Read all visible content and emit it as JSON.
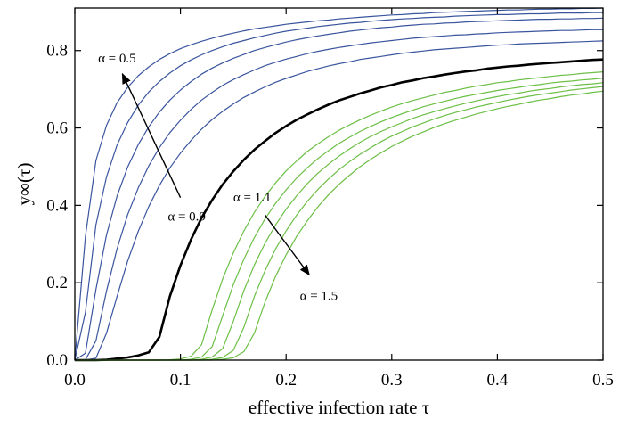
{
  "chart_data": {
    "type": "line",
    "xlabel": "effective infection rate τ",
    "ylabel": "y∞(τ)",
    "xlim": [
      0,
      0.5
    ],
    "ylim": [
      0,
      0.91
    ],
    "x_ticks": [
      "0.0",
      "0.1",
      "0.2",
      "0.3",
      "0.4",
      "0.5"
    ],
    "x_tick_values": [
      0,
      0.1,
      0.2,
      0.3,
      0.4,
      0.5
    ],
    "y_ticks": [
      "0.0",
      "0.2",
      "0.4",
      "0.6",
      "0.8"
    ],
    "y_tick_values": [
      0,
      0.2,
      0.4,
      0.6,
      0.8
    ],
    "grid": false,
    "colors": {
      "low_alpha": "#3a559e",
      "critical": "#000000",
      "high_alpha": "#6cbf45"
    },
    "x": [
      0,
      0.01,
      0.02,
      0.03,
      0.04,
      0.05,
      0.06,
      0.07,
      0.08,
      0.09,
      0.1,
      0.11,
      0.12,
      0.13,
      0.14,
      0.15,
      0.16,
      0.17,
      0.18,
      0.19,
      0.2,
      0.21,
      0.22,
      0.23,
      0.24,
      0.25,
      0.26,
      0.27,
      0.28,
      0.29,
      0.3,
      0.31,
      0.32,
      0.33,
      0.34,
      0.35,
      0.36,
      0.37,
      0.38,
      0.39,
      0.4,
      0.41,
      0.42,
      0.43,
      0.44,
      0.45,
      0.46,
      0.47,
      0.48,
      0.49,
      0.5
    ],
    "series": [
      {
        "group": "low_alpha",
        "values": [
          0,
          0.32,
          0.516,
          0.607,
          0.665,
          0.705,
          0.735,
          0.758,
          0.777,
          0.792,
          0.805,
          0.815,
          0.824,
          0.832,
          0.839,
          0.845,
          0.851,
          0.856,
          0.86,
          0.864,
          0.868,
          0.871,
          0.874,
          0.877,
          0.879,
          0.882,
          0.884,
          0.886,
          0.888,
          0.89,
          0.892,
          0.893,
          0.895,
          0.896,
          0.898,
          0.899,
          0.9,
          0.901,
          0.902,
          0.903,
          0.904,
          0.905,
          0.905,
          0.906,
          0.907,
          0.907,
          0.908,
          0.908,
          0.909,
          0.909,
          0.91
        ]
      },
      {
        "group": "low_alpha",
        "values": [
          0,
          0.124,
          0.35,
          0.474,
          0.556,
          0.614,
          0.659,
          0.693,
          0.72,
          0.742,
          0.761,
          0.776,
          0.789,
          0.8,
          0.81,
          0.819,
          0.826,
          0.833,
          0.839,
          0.845,
          0.85,
          0.854,
          0.858,
          0.862,
          0.865,
          0.868,
          0.871,
          0.873,
          0.876,
          0.878,
          0.88,
          0.882,
          0.883,
          0.885,
          0.886,
          0.887,
          0.889,
          0.89,
          0.891,
          0.892,
          0.893,
          0.893,
          0.894,
          0.895,
          0.895,
          0.896,
          0.897,
          0.897,
          0.897,
          0.898,
          0.898
        ]
      },
      {
        "group": "low_alpha",
        "values": [
          0,
          0.018,
          0.183,
          0.324,
          0.424,
          0.499,
          0.557,
          0.603,
          0.641,
          0.672,
          0.698,
          0.72,
          0.739,
          0.755,
          0.768,
          0.78,
          0.79,
          0.8,
          0.808,
          0.815,
          0.822,
          0.828,
          0.833,
          0.838,
          0.842,
          0.846,
          0.85,
          0.853,
          0.856,
          0.859,
          0.861,
          0.864,
          0.866,
          0.868,
          0.869,
          0.871,
          0.872,
          0.874,
          0.875,
          0.876,
          0.877,
          0.878,
          0.879,
          0.88,
          0.881,
          0.881,
          0.882,
          0.882,
          0.883,
          0.883,
          0.884
        ]
      },
      {
        "group": "low_alpha",
        "values": [
          0,
          0.001,
          0.05,
          0.179,
          0.288,
          0.376,
          0.445,
          0.502,
          0.549,
          0.588,
          0.62,
          0.648,
          0.672,
          0.692,
          0.71,
          0.725,
          0.738,
          0.75,
          0.761,
          0.77,
          0.778,
          0.785,
          0.792,
          0.798,
          0.803,
          0.808,
          0.812,
          0.816,
          0.82,
          0.823,
          0.826,
          0.829,
          0.832,
          0.834,
          0.836,
          0.838,
          0.84,
          0.841,
          0.843,
          0.844,
          0.846,
          0.847,
          0.848,
          0.849,
          0.85,
          0.851,
          0.852,
          0.852,
          0.853,
          0.854,
          0.854
        ]
      },
      {
        "group": "low_alpha",
        "values": [
          0,
          0,
          0.005,
          0.07,
          0.165,
          0.256,
          0.333,
          0.397,
          0.451,
          0.497,
          0.535,
          0.568,
          0.597,
          0.622,
          0.643,
          0.662,
          0.679,
          0.693,
          0.706,
          0.718,
          0.728,
          0.737,
          0.746,
          0.753,
          0.76,
          0.766,
          0.771,
          0.777,
          0.781,
          0.785,
          0.789,
          0.793,
          0.796,
          0.799,
          0.802,
          0.804,
          0.806,
          0.808,
          0.81,
          0.812,
          0.814,
          0.815,
          0.817,
          0.818,
          0.819,
          0.82,
          0.821,
          0.822,
          0.823,
          0.824,
          0.825
        ]
      },
      {
        "group": "critical",
        "values": [
          0,
          0,
          0,
          0.001,
          0.004,
          0.007,
          0.012,
          0.02,
          0.06,
          0.165,
          0.245,
          0.312,
          0.368,
          0.414,
          0.454,
          0.488,
          0.518,
          0.544,
          0.566,
          0.587,
          0.605,
          0.621,
          0.635,
          0.648,
          0.66,
          0.671,
          0.68,
          0.689,
          0.697,
          0.705,
          0.711,
          0.718,
          0.723,
          0.729,
          0.733,
          0.738,
          0.742,
          0.746,
          0.749,
          0.753,
          0.756,
          0.759,
          0.761,
          0.764,
          0.766,
          0.768,
          0.77,
          0.772,
          0.774,
          0.776,
          0.777
        ]
      },
      {
        "group": "high_alpha",
        "values": [
          0,
          0,
          0,
          0,
          0,
          0,
          0,
          0,
          0,
          0.001,
          0.003,
          0.01,
          0.04,
          0.13,
          0.21,
          0.277,
          0.334,
          0.382,
          0.423,
          0.458,
          0.489,
          0.515,
          0.539,
          0.559,
          0.577,
          0.594,
          0.608,
          0.621,
          0.633,
          0.644,
          0.654,
          0.663,
          0.671,
          0.678,
          0.685,
          0.692,
          0.697,
          0.703,
          0.708,
          0.712,
          0.717,
          0.72,
          0.724,
          0.727,
          0.73,
          0.733,
          0.736,
          0.738,
          0.741,
          0.743,
          0.745
        ]
      },
      {
        "group": "high_alpha",
        "values": [
          0,
          0,
          0,
          0,
          0,
          0,
          0,
          0,
          0,
          0,
          0,
          0.002,
          0.008,
          0.035,
          0.115,
          0.195,
          0.261,
          0.317,
          0.365,
          0.405,
          0.44,
          0.471,
          0.497,
          0.521,
          0.541,
          0.56,
          0.576,
          0.591,
          0.604,
          0.616,
          0.627,
          0.637,
          0.646,
          0.655,
          0.662,
          0.669,
          0.676,
          0.682,
          0.687,
          0.692,
          0.697,
          0.701,
          0.705,
          0.709,
          0.712,
          0.716,
          0.719,
          0.721,
          0.724,
          0.726,
          0.729
        ]
      },
      {
        "group": "high_alpha",
        "values": [
          0,
          0,
          0,
          0,
          0,
          0,
          0,
          0,
          0,
          0,
          0,
          0,
          0.002,
          0.008,
          0.03,
          0.1,
          0.18,
          0.246,
          0.302,
          0.349,
          0.39,
          0.425,
          0.456,
          0.483,
          0.506,
          0.527,
          0.546,
          0.563,
          0.578,
          0.591,
          0.603,
          0.614,
          0.625,
          0.634,
          0.642,
          0.65,
          0.657,
          0.664,
          0.67,
          0.676,
          0.681,
          0.686,
          0.69,
          0.695,
          0.699,
          0.702,
          0.706,
          0.709,
          0.712,
          0.714,
          0.717
        ]
      },
      {
        "group": "high_alpha",
        "values": [
          0,
          0,
          0,
          0,
          0,
          0,
          0,
          0,
          0,
          0,
          0,
          0,
          0,
          0.002,
          0.007,
          0.025,
          0.085,
          0.165,
          0.231,
          0.287,
          0.334,
          0.375,
          0.41,
          0.441,
          0.468,
          0.492,
          0.513,
          0.532,
          0.549,
          0.565,
          0.579,
          0.591,
          0.603,
          0.613,
          0.623,
          0.632,
          0.64,
          0.647,
          0.654,
          0.66,
          0.666,
          0.672,
          0.677,
          0.682,
          0.686,
          0.69,
          0.694,
          0.698,
          0.701,
          0.704,
          0.707
        ]
      },
      {
        "group": "high_alpha",
        "values": [
          0,
          0,
          0,
          0,
          0,
          0,
          0,
          0,
          0,
          0,
          0,
          0,
          0,
          0,
          0.002,
          0.006,
          0.022,
          0.07,
          0.15,
          0.216,
          0.272,
          0.32,
          0.36,
          0.396,
          0.427,
          0.454,
          0.478,
          0.5,
          0.519,
          0.536,
          0.552,
          0.566,
          0.579,
          0.59,
          0.601,
          0.611,
          0.62,
          0.628,
          0.636,
          0.643,
          0.65,
          0.656,
          0.661,
          0.667,
          0.672,
          0.676,
          0.681,
          0.685,
          0.688,
          0.692,
          0.695
        ]
      }
    ],
    "annotations": [
      {
        "text": "α = 0.5",
        "x": 0.022,
        "y": 0.77
      },
      {
        "text": "α = 0.9",
        "x": 0.088,
        "y": 0.36
      },
      {
        "text": "α = 1.1",
        "x": 0.15,
        "y": 0.41
      },
      {
        "text": "α = 1.5",
        "x": 0.213,
        "y": 0.155
      }
    ],
    "arrows": [
      {
        "from": [
          0.1,
          0.42
        ],
        "to": [
          0.045,
          0.74
        ]
      },
      {
        "from": [
          0.18,
          0.375
        ],
        "to": [
          0.222,
          0.22
        ]
      }
    ]
  }
}
